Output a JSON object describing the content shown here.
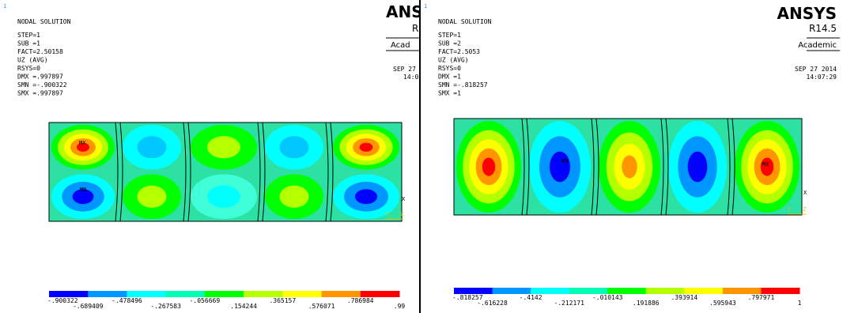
{
  "panels": [
    {
      "corner_number": "1",
      "title": "NODAL SOLUTION",
      "info": [
        "STEP=1",
        "SUB =1",
        "FACT=2.50158",
        "UZ       (AVG)",
        "RSYS=0",
        "DMX =.997897",
        "SMN =-.900322",
        "SMX =.997897"
      ],
      "logo": "ANS",
      "release": "R",
      "edition": "Acad",
      "date": "SEP 27",
      "time": "14:0",
      "plot_labels": {
        "max": "MX",
        "min": "MN",
        "x_axis": "X",
        "y_axis": "Y",
        "z_axis": "Z"
      },
      "legend": [
        "-.900322",
        "-.689409",
        "-.478496",
        "-.267583",
        "-.056669",
        ".154244",
        ".365157",
        ".576071",
        ".786984",
        ".99"
      ]
    },
    {
      "corner_number": "1",
      "title": "NODAL SOLUTION",
      "info": [
        "STEP=1",
        "SUB =2",
        "FACT=2.5053",
        "UZ       (AVG)",
        "RSYS=0",
        "DMX =1",
        "SMN =-.818257",
        "SMX =1"
      ],
      "logo": "ANSYS",
      "release": "R14.5",
      "edition": "Academic",
      "date": "SEP 27 2014",
      "time": "14:07:29",
      "plot_labels": {
        "max": "MX",
        "min": "MN",
        "x_axis": "X",
        "y_axis": "Y",
        "z_axis": "Z"
      },
      "legend": [
        "-.818257",
        "-.616228",
        "-.4142",
        "-.212171",
        "-.010143",
        ".191886",
        ".393914",
        ".595943",
        ".797971",
        "1"
      ]
    }
  ]
}
